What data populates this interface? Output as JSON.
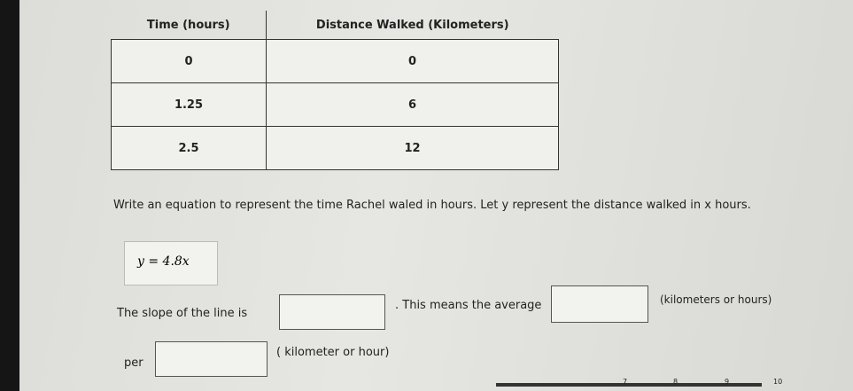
{
  "table": {
    "header": [
      "Time (hours)",
      "Distance Walked (Kilometers)"
    ],
    "rows": [
      [
        "0",
        "0"
      ],
      [
        "1.25",
        "6"
      ],
      [
        "2.5",
        "12"
      ]
    ]
  },
  "question": "Write an equation to represent the time Rachel waled in hours. Let y represent the distance walked in x hours.",
  "answer": "y = 4.8x",
  "sentence": {
    "slope_prefix": "The slope of the line is",
    "average_text": ". This means the average",
    "unit_hint_1": "(kilometers or hours)",
    "per": "per",
    "unit_hint_2": "( kilometer or hour)"
  },
  "progress": [
    "7",
    "8",
    "9",
    "10"
  ]
}
